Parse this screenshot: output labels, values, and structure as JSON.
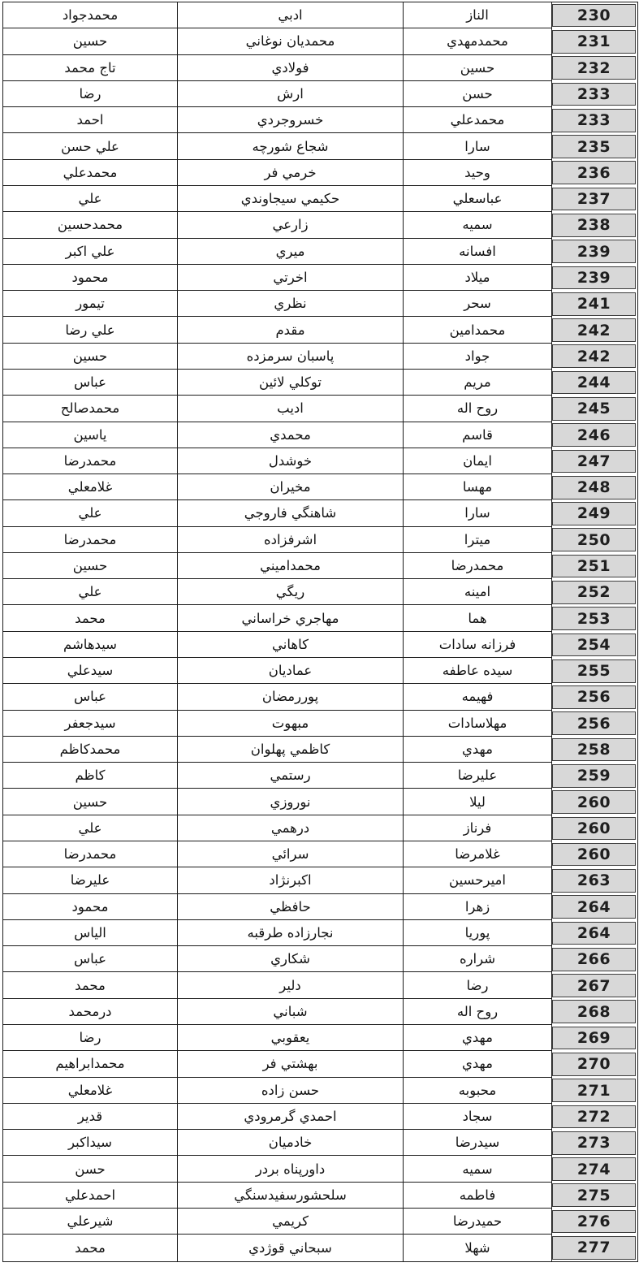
{
  "page": {
    "background": "#ffffff"
  },
  "table": {
    "direction": "rtl",
    "columns": [
      {
        "key": "num",
        "name": "row-number"
      },
      {
        "key": "first",
        "name": "first-name"
      },
      {
        "key": "last",
        "name": "last-name"
      },
      {
        "key": "father",
        "name": "father-name"
      }
    ],
    "colors": {
      "number_cell_bg": "#d8d8d8",
      "number_cell_border": "#3d3d3d",
      "grid_border": "#1c1c1c",
      "text": "#141414"
    },
    "rows": [
      {
        "num": "230",
        "first": "الناز",
        "last": "ادبي",
        "father": "محمدجواد"
      },
      {
        "num": "231",
        "first": "محمدمهدي",
        "last": "محمديان نوغاني",
        "father": "حسين"
      },
      {
        "num": "232",
        "first": "حسين",
        "last": "فولادي",
        "father": "تاج محمد"
      },
      {
        "num": "233",
        "first": "حسن",
        "last": "ارش",
        "father": "رضا"
      },
      {
        "num": "233",
        "first": "محمدعلي",
        "last": "خسروجردي",
        "father": "احمد"
      },
      {
        "num": "235",
        "first": "سارا",
        "last": "شجاع شورچه",
        "father": "علي حسن"
      },
      {
        "num": "236",
        "first": "وحيد",
        "last": "خرمي فر",
        "father": "محمدعلي"
      },
      {
        "num": "237",
        "first": "عباسعلي",
        "last": "حكيمي سيجاوندي",
        "father": "علي"
      },
      {
        "num": "238",
        "first": "سميه",
        "last": "زارعي",
        "father": "محمدحسين"
      },
      {
        "num": "239",
        "first": "افسانه",
        "last": "ميري",
        "father": "علي اكبر"
      },
      {
        "num": "239",
        "first": "ميلاد",
        "last": "اخرتي",
        "father": "محمود"
      },
      {
        "num": "241",
        "first": "سحر",
        "last": "نظري",
        "father": "تيمور"
      },
      {
        "num": "242",
        "first": "محمدامين",
        "last": "مقدم",
        "father": "علي رضا"
      },
      {
        "num": "242",
        "first": "جواد",
        "last": "پاسبان سرمزده",
        "father": "حسين"
      },
      {
        "num": "244",
        "first": "مريم",
        "last": "توكلي لائين",
        "father": "عباس"
      },
      {
        "num": "245",
        "first": "روح اله",
        "last": "اديب",
        "father": "محمدصالح"
      },
      {
        "num": "246",
        "first": "قاسم",
        "last": "محمدي",
        "father": "ياسين"
      },
      {
        "num": "247",
        "first": "ايمان",
        "last": "خوشدل",
        "father": "محمدرضا"
      },
      {
        "num": "248",
        "first": "مهسا",
        "last": "مخيران",
        "father": "غلامعلي"
      },
      {
        "num": "249",
        "first": "سارا",
        "last": "شاهنگي فاروجي",
        "father": "علي"
      },
      {
        "num": "250",
        "first": "ميترا",
        "last": "اشرفزاده",
        "father": "محمدرضا"
      },
      {
        "num": "251",
        "first": "محمدرضا",
        "last": "محمداميني",
        "father": "حسين"
      },
      {
        "num": "252",
        "first": "امينه",
        "last": "ريگي",
        "father": "علي"
      },
      {
        "num": "253",
        "first": "هما",
        "last": "مهاجري خراساني",
        "father": "محمد"
      },
      {
        "num": "254",
        "first": "فرزانه سادات",
        "last": "كاهاني",
        "father": "سيدهاشم"
      },
      {
        "num": "255",
        "first": "سيده عاطفه",
        "last": "عماديان",
        "father": "سيدعلي"
      },
      {
        "num": "256",
        "first": "فهيمه",
        "last": "پوررمضان",
        "father": "عباس"
      },
      {
        "num": "256",
        "first": "مهلاسادات",
        "last": "مبهوت",
        "father": "سيدجعفر"
      },
      {
        "num": "258",
        "first": "مهدي",
        "last": "كاظمي پهلوان",
        "father": "محمدكاظم"
      },
      {
        "num": "259",
        "first": "عليرضا",
        "last": "رستمي",
        "father": "كاظم"
      },
      {
        "num": "260",
        "first": "ليلا",
        "last": "نوروزي",
        "father": "حسين"
      },
      {
        "num": "260",
        "first": "فرناز",
        "last": "درهمي",
        "father": "علي"
      },
      {
        "num": "260",
        "first": "غلامرضا",
        "last": "سرائي",
        "father": "محمدرضا"
      },
      {
        "num": "263",
        "first": "اميرحسين",
        "last": "اكبرنژاد",
        "father": "عليرضا"
      },
      {
        "num": "264",
        "first": "زهرا",
        "last": "حافظي",
        "father": "محمود"
      },
      {
        "num": "264",
        "first": "پوريا",
        "last": "نجارزاده طرقبه",
        "father": "الياس"
      },
      {
        "num": "266",
        "first": "شراره",
        "last": "شكاري",
        "father": "عباس"
      },
      {
        "num": "267",
        "first": "رضا",
        "last": "دلير",
        "father": "محمد"
      },
      {
        "num": "268",
        "first": "روح اله",
        "last": "شباني",
        "father": "درمحمد"
      },
      {
        "num": "269",
        "first": "مهدي",
        "last": "يعقوبي",
        "father": "رضا"
      },
      {
        "num": "270",
        "first": "مهدي",
        "last": "بهشتي فر",
        "father": "محمدابراهيم"
      },
      {
        "num": "271",
        "first": "محبوبه",
        "last": "حسن زاده",
        "father": "غلامعلي"
      },
      {
        "num": "272",
        "first": "سجاد",
        "last": "احمدي گرمرودي",
        "father": "قدير"
      },
      {
        "num": "273",
        "first": "سيدرضا",
        "last": "خادميان",
        "father": "سيداكبر"
      },
      {
        "num": "274",
        "first": "سميه",
        "last": "داورپناه بردر",
        "father": "حسن"
      },
      {
        "num": "275",
        "first": "فاطمه",
        "last": "سلحشورسفيدسنگي",
        "father": "احمدعلي"
      },
      {
        "num": "276",
        "first": "حميدرضا",
        "last": "كريمي",
        "father": "شيرعلي"
      },
      {
        "num": "277",
        "first": "شهلا",
        "last": "سبحاني قوژدي",
        "father": "محمد"
      }
    ]
  }
}
